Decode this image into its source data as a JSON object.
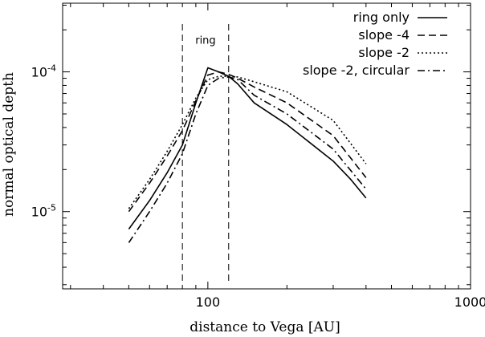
{
  "chart_data": {
    "type": "line",
    "xlabel": "distance to Vega [AU]",
    "ylabel": "normal optical depth",
    "xscale": "log",
    "yscale": "log",
    "xlim": [
      28,
      1000
    ],
    "ylim": [
      2.8e-06,
      0.00031
    ],
    "x_ticks": [
      {
        "value": 100,
        "label": "100"
      },
      {
        "value": 1000,
        "label": "1000"
      }
    ],
    "y_ticks": [
      {
        "value": 1e-05,
        "label": "10",
        "exp": "-5"
      },
      {
        "value": 0.0001,
        "label": "10",
        "exp": "-4"
      }
    ],
    "legend_position": "top-right",
    "annotation": {
      "label": "ring",
      "x_bounds": [
        80,
        120
      ],
      "y_range": [
        3e-06,
        0.00022
      ],
      "label_y": 0.00017
    },
    "series": [
      {
        "name": "ring only",
        "dash": "solid",
        "points": [
          [
            50,
            7.5e-06
          ],
          [
            60,
            1.2e-05
          ],
          [
            70,
            1.9e-05
          ],
          [
            80,
            3e-05
          ],
          [
            90,
            6e-05
          ],
          [
            100,
            0.000107
          ],
          [
            110,
            0.0001
          ],
          [
            120,
            9.3e-05
          ],
          [
            130,
            8.2e-05
          ],
          [
            150,
            6e-05
          ],
          [
            200,
            4.2e-05
          ],
          [
            300,
            2.3e-05
          ],
          [
            350,
            1.7e-05
          ],
          [
            400,
            1.25e-05
          ]
        ]
      },
      {
        "name": "slope -4",
        "dash": "dashed",
        "points": [
          [
            50,
            1e-05
          ],
          [
            60,
            1.6e-05
          ],
          [
            70,
            2.5e-05
          ],
          [
            80,
            3.8e-05
          ],
          [
            90,
            6.2e-05
          ],
          [
            100,
            9.5e-05
          ],
          [
            110,
            0.0001
          ],
          [
            120,
            9.6e-05
          ],
          [
            130,
            9e-05
          ],
          [
            150,
            7.8e-05
          ],
          [
            200,
            6e-05
          ],
          [
            300,
            3.5e-05
          ],
          [
            400,
            1.75e-05
          ]
        ]
      },
      {
        "name": "slope -2",
        "dash": "dotted",
        "points": [
          [
            50,
            1.05e-05
          ],
          [
            60,
            1.7e-05
          ],
          [
            70,
            2.7e-05
          ],
          [
            80,
            4.2e-05
          ],
          [
            90,
            6.5e-05
          ],
          [
            100,
            8.8e-05
          ],
          [
            110,
            9.3e-05
          ],
          [
            120,
            9.3e-05
          ],
          [
            130,
            9.2e-05
          ],
          [
            150,
            8.5e-05
          ],
          [
            200,
            7.2e-05
          ],
          [
            300,
            4.5e-05
          ],
          [
            400,
            2.2e-05
          ]
        ]
      },
      {
        "name": "slope -2, circular",
        "dash": "dashdot",
        "points": [
          [
            50,
            6e-06
          ],
          [
            60,
            1e-05
          ],
          [
            70,
            1.6e-05
          ],
          [
            80,
            2.6e-05
          ],
          [
            90,
            5e-05
          ],
          [
            100,
            8e-05
          ],
          [
            110,
            9e-05
          ],
          [
            120,
            9.2e-05
          ],
          [
            130,
            8.8e-05
          ],
          [
            150,
            6.8e-05
          ],
          [
            200,
            5e-05
          ],
          [
            300,
            2.8e-05
          ],
          [
            400,
            1.45e-05
          ]
        ]
      }
    ]
  }
}
